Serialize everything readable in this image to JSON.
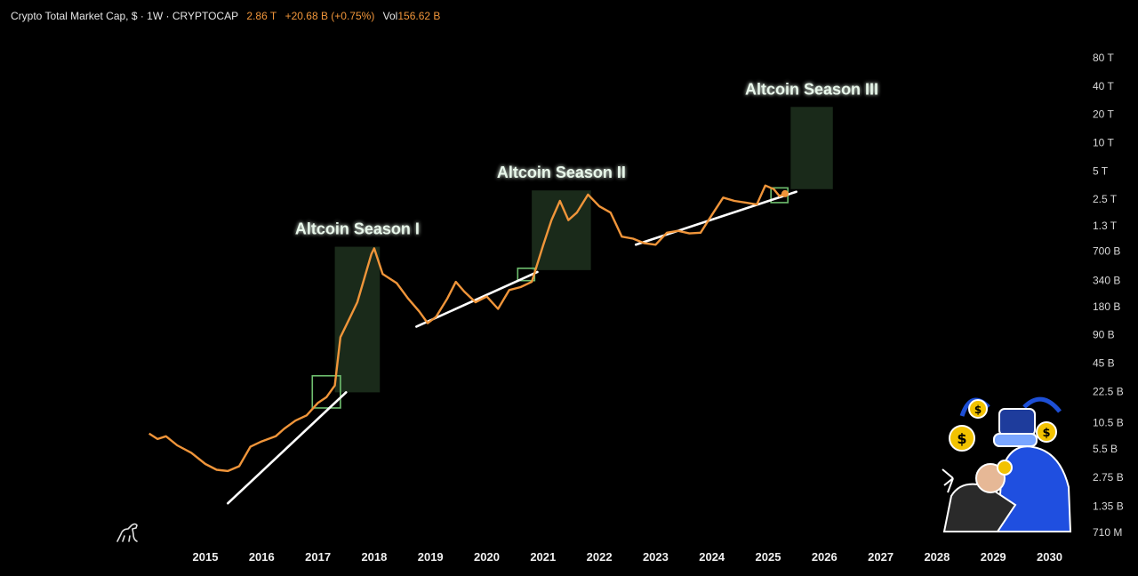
{
  "header": {
    "symbol": "Crypto Total Market Cap, $ · 1W · CRYPTOCAP",
    "price": "2.86 T",
    "change": "+20.68 B (+0.75%)",
    "vol_label": "Vol",
    "vol_value": "156.62 B"
  },
  "colors": {
    "background": "#000000",
    "line": "#f0953a",
    "trendline": "#ffffff",
    "season_box": "#1a2a1a",
    "breakout_box": "#6fbf6f",
    "label_glow": "#9be3a3"
  },
  "chart_data": {
    "type": "line",
    "title": "",
    "xlabel": "",
    "ylabel": "",
    "y_scale": "log",
    "x_ticks": [
      "2015",
      "2016",
      "2017",
      "2018",
      "2019",
      "2020",
      "2021",
      "2022",
      "2023",
      "2024",
      "2025",
      "2026",
      "2027",
      "2028",
      "2029",
      "2030"
    ],
    "y_ticks": [
      {
        "label": "80 T",
        "value": 80000000000000
      },
      {
        "label": "40 T",
        "value": 40000000000000
      },
      {
        "label": "20 T",
        "value": 20000000000000
      },
      {
        "label": "10 T",
        "value": 10000000000000
      },
      {
        "label": "5 T",
        "value": 5000000000000
      },
      {
        "label": "2.5 T",
        "value": 2500000000000
      },
      {
        "label": "1.3 T",
        "value": 1300000000000
      },
      {
        "label": "700 B",
        "value": 700000000000
      },
      {
        "label": "340 B",
        "value": 340000000000
      },
      {
        "label": "180 B",
        "value": 180000000000
      },
      {
        "label": "90 B",
        "value": 90000000000
      },
      {
        "label": "45 B",
        "value": 45000000000
      },
      {
        "label": "22.5 B",
        "value": 22500000000
      },
      {
        "label": "10.5 B",
        "value": 10500000000
      },
      {
        "label": "5.5 B",
        "value": 5500000000
      },
      {
        "label": "2.75 B",
        "value": 2750000000
      },
      {
        "label": "1.35 B",
        "value": 1350000000
      },
      {
        "label": "710 M",
        "value": 710000000
      }
    ],
    "series": [
      {
        "values": [
          [
            2014.0,
            8000000000.0
          ],
          [
            2014.15,
            7000000000.0
          ],
          [
            2014.3,
            7500000000.0
          ],
          [
            2014.5,
            6000000000.0
          ],
          [
            2014.75,
            5000000000.0
          ],
          [
            2015.0,
            3800000000.0
          ],
          [
            2015.2,
            3300000000.0
          ],
          [
            2015.4,
            3200000000.0
          ],
          [
            2015.6,
            3600000000.0
          ],
          [
            2015.8,
            5800000000.0
          ],
          [
            2016.0,
            6600000000.0
          ],
          [
            2016.25,
            7500000000.0
          ],
          [
            2016.4,
            9000000000.0
          ],
          [
            2016.6,
            11000000000.0
          ],
          [
            2016.8,
            12500000000.0
          ],
          [
            2017.0,
            17000000000.0
          ],
          [
            2017.15,
            19500000000.0
          ],
          [
            2017.3,
            26000000000.0
          ],
          [
            2017.4,
            85000000000.0
          ],
          [
            2017.55,
            130000000000.0
          ],
          [
            2017.7,
            200000000000.0
          ],
          [
            2017.8,
            320000000000.0
          ],
          [
            2017.95,
            650000000000.0
          ],
          [
            2018.0,
            750000000000.0
          ],
          [
            2018.15,
            400000000000.0
          ],
          [
            2018.4,
            320000000000.0
          ],
          [
            2018.6,
            220000000000.0
          ],
          [
            2018.8,
            160000000000.0
          ],
          [
            2018.95,
            120000000000.0
          ],
          [
            2019.1,
            140000000000.0
          ],
          [
            2019.3,
            220000000000.0
          ],
          [
            2019.45,
            330000000000.0
          ],
          [
            2019.6,
            260000000000.0
          ],
          [
            2019.8,
            200000000000.0
          ],
          [
            2020.0,
            230000000000.0
          ],
          [
            2020.2,
            170000000000.0
          ],
          [
            2020.4,
            270000000000.0
          ],
          [
            2020.6,
            290000000000.0
          ],
          [
            2020.8,
            330000000000.0
          ],
          [
            2021.0,
            800000000000.0
          ],
          [
            2021.15,
            1500000000000.0
          ],
          [
            2021.3,
            2400000000000.0
          ],
          [
            2021.45,
            1500000000000.0
          ],
          [
            2021.6,
            1800000000000.0
          ],
          [
            2021.8,
            2800000000000.0
          ],
          [
            2022.0,
            2100000000000.0
          ],
          [
            2022.2,
            1800000000000.0
          ],
          [
            2022.4,
            1000000000000.0
          ],
          [
            2022.6,
            950000000000.0
          ],
          [
            2022.8,
            850000000000.0
          ],
          [
            2023.0,
            820000000000.0
          ],
          [
            2023.2,
            1100000000000.0
          ],
          [
            2023.4,
            1150000000000.0
          ],
          [
            2023.6,
            1080000000000.0
          ],
          [
            2023.8,
            1100000000000.0
          ],
          [
            2024.0,
            1700000000000.0
          ],
          [
            2024.2,
            2600000000000.0
          ],
          [
            2024.4,
            2400000000000.0
          ],
          [
            2024.6,
            2300000000000.0
          ],
          [
            2024.8,
            2200000000000.0
          ],
          [
            2024.95,
            3500000000000.0
          ],
          [
            2025.1,
            3200000000000.0
          ],
          [
            2025.2,
            2700000000000.0
          ],
          [
            2025.3,
            2860000000000.0
          ]
        ]
      }
    ],
    "trendlines": [
      {
        "from": [
          2015.4,
          1450000000.0
        ],
        "to": [
          2017.5,
          22000000000.0
        ]
      },
      {
        "from": [
          2018.75,
          110000000000.0
        ],
        "to": [
          2020.9,
          420000000000.0
        ]
      },
      {
        "from": [
          2022.65,
          820000000000.0
        ],
        "to": [
          2025.5,
          3000000000000.0
        ]
      }
    ],
    "season_boxes": [
      {
        "label": "Altcoin Season I",
        "x": [
          2017.3,
          2018.1
        ],
        "y": [
          22000000000.0,
          780000000000.0
        ]
      },
      {
        "label": "Altcoin Season II",
        "x": [
          2020.8,
          2021.85
        ],
        "y": [
          440000000000.0,
          3100000000000.0
        ]
      },
      {
        "label": "Altcoin Season III",
        "x": [
          2025.4,
          2026.15
        ],
        "y": [
          3200000000000.0,
          24000000000000.0
        ]
      }
    ],
    "breakout_boxes": [
      {
        "x": [
          2016.9,
          2017.4
        ],
        "y": [
          15000000000.0,
          33000000000.0
        ]
      },
      {
        "x": [
          2020.55,
          2020.85
        ],
        "y": [
          340000000000.0,
          460000000000.0
        ]
      },
      {
        "x": [
          2025.05,
          2025.35
        ],
        "y": [
          2300000000000.0,
          3300000000000.0
        ]
      }
    ]
  }
}
